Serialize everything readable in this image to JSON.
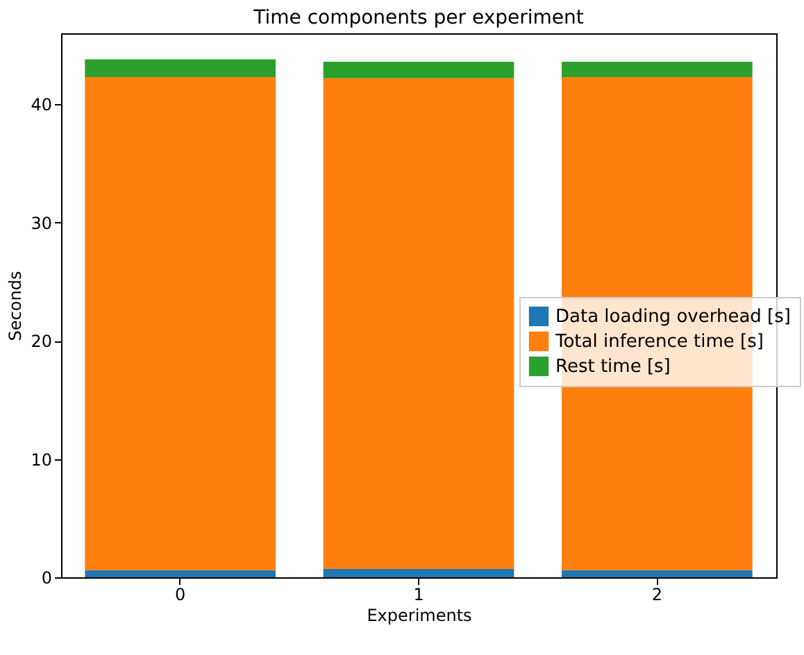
{
  "chart_data": {
    "type": "bar",
    "title": "Time components per experiment",
    "xlabel": "Experiments",
    "ylabel": "Seconds",
    "categories": [
      "0",
      "1",
      "2"
    ],
    "stacked": true,
    "series": [
      {
        "name": "Data loading overhead [s]",
        "color": "#1f77b4",
        "values": [
          0.6,
          0.7,
          0.6
        ]
      },
      {
        "name": "Total inference time [s]",
        "color": "#ff7f0e",
        "values": [
          41.7,
          41.5,
          41.7
        ]
      },
      {
        "name": "Rest time [s]",
        "color": "#2ca02c",
        "values": [
          1.5,
          1.4,
          1.3
        ]
      }
    ],
    "ylim": [
      0,
      46
    ],
    "yticks": [
      0,
      10,
      20,
      30,
      40
    ],
    "grid": false,
    "legend": "right"
  }
}
